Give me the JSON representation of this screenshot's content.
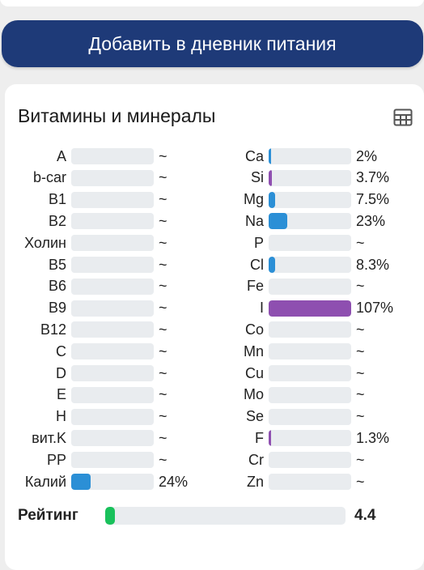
{
  "add_button_label": "Добавить в дневник питания",
  "card": {
    "title": "Витамины и минералы",
    "icon": "table-grid-icon"
  },
  "colors": {
    "blue": "#2b8fd6",
    "purple": "#8e4fb0",
    "green": "#19c15b",
    "track": "#e9ecef",
    "button": "#1e3a78"
  },
  "vitamins": [
    {
      "label": "A",
      "value": "~",
      "fill": 0
    },
    {
      "label": "b-car",
      "value": "~",
      "fill": 0
    },
    {
      "label": "B1",
      "value": "~",
      "fill": 0
    },
    {
      "label": "B2",
      "value": "~",
      "fill": 0
    },
    {
      "label": "Холин",
      "value": "~",
      "fill": 0
    },
    {
      "label": "B5",
      "value": "~",
      "fill": 0
    },
    {
      "label": "B6",
      "value": "~",
      "fill": 0
    },
    {
      "label": "B9",
      "value": "~",
      "fill": 0
    },
    {
      "label": "B12",
      "value": "~",
      "fill": 0
    },
    {
      "label": "C",
      "value": "~",
      "fill": 0
    },
    {
      "label": "D",
      "value": "~",
      "fill": 0
    },
    {
      "label": "E",
      "value": "~",
      "fill": 0
    },
    {
      "label": "H",
      "value": "~",
      "fill": 0
    },
    {
      "label": "вит.K",
      "value": "~",
      "fill": 0
    },
    {
      "label": "PP",
      "value": "~",
      "fill": 0
    },
    {
      "label": "Калий",
      "value": "24%",
      "fill": 0.24,
      "color": "blue"
    }
  ],
  "minerals": [
    {
      "label": "Ca",
      "value": "2%",
      "fill": 0.02,
      "color": "blue"
    },
    {
      "label": "Si",
      "value": "3.7%",
      "fill": 0.037,
      "color": "purple"
    },
    {
      "label": "Mg",
      "value": "7.5%",
      "fill": 0.075,
      "color": "blue"
    },
    {
      "label": "Na",
      "value": "23%",
      "fill": 0.23,
      "color": "blue"
    },
    {
      "label": "P",
      "value": "~",
      "fill": 0
    },
    {
      "label": "Cl",
      "value": "8.3%",
      "fill": 0.083,
      "color": "blue"
    },
    {
      "label": "Fe",
      "value": "~",
      "fill": 0
    },
    {
      "label": "I",
      "value": "107%",
      "fill": 1.0,
      "color": "purple"
    },
    {
      "label": "Co",
      "value": "~",
      "fill": 0
    },
    {
      "label": "Mn",
      "value": "~",
      "fill": 0
    },
    {
      "label": "Cu",
      "value": "~",
      "fill": 0
    },
    {
      "label": "Mo",
      "value": "~",
      "fill": 0
    },
    {
      "label": "Se",
      "value": "~",
      "fill": 0
    },
    {
      "label": "F",
      "value": "1.3%",
      "fill": 0.013,
      "color": "purple"
    },
    {
      "label": "Cr",
      "value": "~",
      "fill": 0
    },
    {
      "label": "Zn",
      "value": "~",
      "fill": 0
    }
  ],
  "rating": {
    "label": "Рейтинг",
    "value": "4.4",
    "fill": 0.03
  }
}
